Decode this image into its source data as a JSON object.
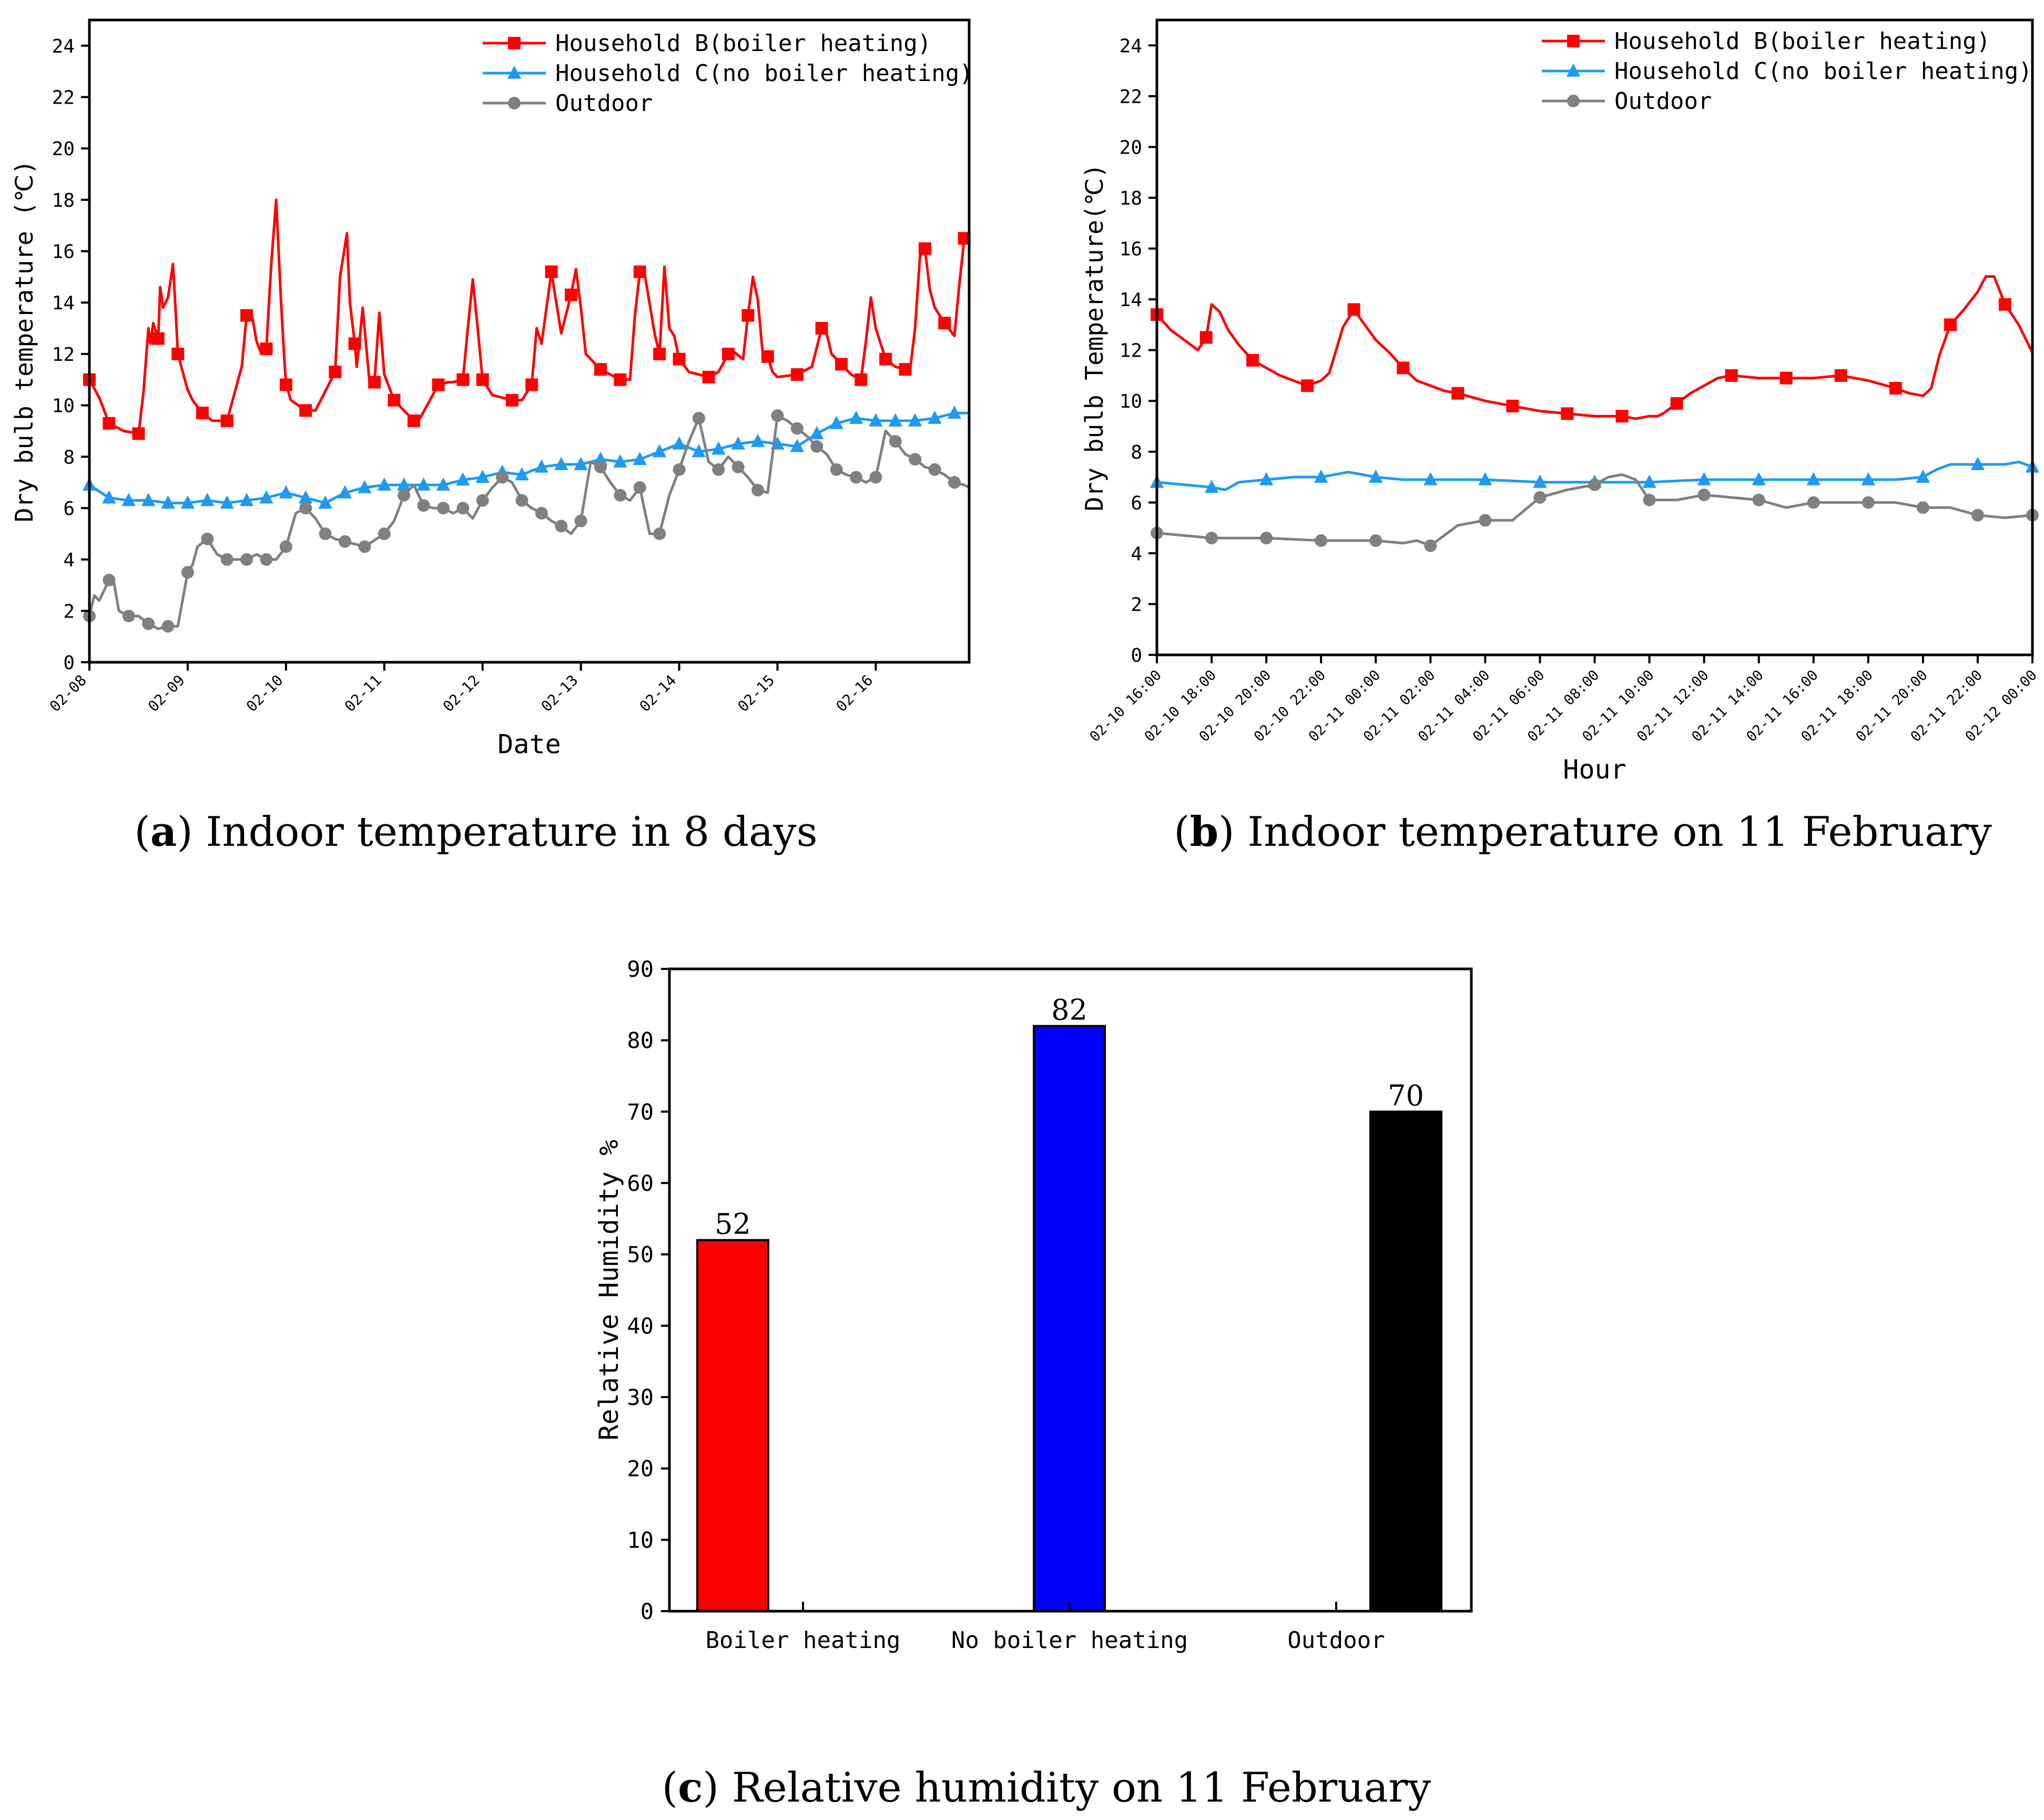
{
  "colors": {
    "household_b": "#ff0000",
    "household_c": "#1e9bf0",
    "outdoor": "#808080",
    "bar_boiler": "#ff0000",
    "bar_no_boiler": "#0000ff",
    "bar_outdoor": "#000000"
  },
  "chart_data": [
    {
      "id": "a",
      "type": "line",
      "caption_letter": "a",
      "caption_text": " Indoor temperature in 8 days",
      "xlabel": "Date",
      "ylabel": "Dry bulb temperature (℃)",
      "xlim": [
        0,
        8.95
      ],
      "ylim": [
        0,
        25
      ],
      "yticks": [
        0,
        2,
        4,
        6,
        8,
        10,
        12,
        14,
        16,
        18,
        20,
        22,
        24
      ],
      "xtick_positions": [
        0,
        1,
        2,
        3,
        4,
        5,
        6,
        7,
        8
      ],
      "xtick_labels": [
        "02-08",
        "02-09",
        "02-10",
        "02-11",
        "02-12",
        "02-13",
        "02-14",
        "02-15",
        "02-16"
      ],
      "legend": [
        "Household B(boiler heating)",
        "Household C(no boiler heating)",
        "Outdoor"
      ],
      "series": [
        {
          "name": "Household B(boiler heating)",
          "marker": "square",
          "x": [
            0.0,
            0.1,
            0.2,
            0.35,
            0.5,
            0.55,
            0.6,
            0.62,
            0.65,
            0.7,
            0.72,
            0.75,
            0.8,
            0.85,
            0.88,
            0.9,
            1.0,
            1.05,
            1.15,
            1.25,
            1.4,
            1.55,
            1.6,
            1.65,
            1.7,
            1.75,
            1.8,
            1.85,
            1.9,
            1.95,
            1.98,
            2.0,
            2.05,
            2.2,
            2.3,
            2.5,
            2.55,
            2.62,
            2.65,
            2.7,
            2.72,
            2.75,
            2.78,
            2.85,
            2.9,
            2.95,
            3.0,
            3.1,
            3.3,
            3.35,
            3.55,
            3.65,
            3.7,
            3.8,
            3.85,
            3.9,
            3.95,
            4.0,
            4.1,
            4.3,
            4.4,
            4.5,
            4.55,
            4.6,
            4.7,
            4.75,
            4.8,
            4.9,
            4.95,
            5.0,
            5.05,
            5.2,
            5.4,
            5.5,
            5.55,
            5.6,
            5.65,
            5.75,
            5.8,
            5.85,
            5.9,
            5.95,
            6.0,
            6.1,
            6.3,
            6.4,
            6.5,
            6.55,
            6.65,
            6.7,
            6.75,
            6.8,
            6.85,
            6.9,
            6.95,
            7.0,
            7.2,
            7.35,
            7.45,
            7.5,
            7.55,
            7.65,
            7.75,
            7.85,
            7.9,
            7.95,
            8.0,
            8.1,
            8.2,
            8.3,
            8.35,
            8.4,
            8.45,
            8.5,
            8.55,
            8.6,
            8.7,
            8.8,
            8.85,
            8.9,
            8.95
          ],
          "y": [
            11.0,
            10.3,
            9.3,
            9.0,
            8.9,
            10.5,
            13.0,
            12.4,
            13.2,
            12.6,
            14.6,
            13.8,
            14.2,
            15.5,
            13.5,
            12.0,
            10.6,
            10.2,
            9.7,
            9.4,
            9.4,
            11.5,
            13.5,
            13.6,
            12.5,
            12.0,
            12.2,
            15.5,
            18.0,
            14.0,
            12.0,
            10.8,
            10.2,
            9.8,
            9.8,
            11.3,
            15.0,
            16.7,
            14.0,
            12.4,
            11.5,
            12.6,
            13.8,
            10.9,
            10.9,
            13.6,
            11.2,
            10.2,
            9.4,
            9.4,
            10.8,
            10.9,
            10.9,
            11.0,
            13.0,
            14.9,
            13.0,
            11.0,
            10.4,
            10.2,
            10.2,
            10.8,
            13.0,
            12.4,
            15.2,
            14.0,
            12.8,
            14.3,
            15.3,
            13.8,
            12.0,
            11.4,
            11.0,
            11.0,
            13.5,
            15.2,
            15.1,
            12.8,
            12.0,
            15.4,
            13.0,
            12.7,
            11.8,
            11.3,
            11.1,
            11.3,
            12.0,
            12.1,
            11.8,
            13.5,
            15.0,
            14.1,
            12.0,
            11.9,
            11.3,
            11.1,
            11.2,
            11.5,
            13.0,
            12.8,
            12.0,
            11.6,
            11.2,
            11.0,
            12.5,
            14.2,
            13.0,
            11.8,
            11.5,
            11.4,
            11.4,
            13.0,
            15.8,
            16.1,
            14.5,
            13.8,
            13.2,
            12.7,
            14.7,
            16.5,
            16.4
          ]
        },
        {
          "name": "Household C(no boiler heating)",
          "marker": "triangle",
          "x": [
            0.0,
            0.2,
            0.4,
            0.6,
            0.8,
            1.0,
            1.2,
            1.4,
            1.6,
            1.8,
            2.0,
            2.2,
            2.4,
            2.6,
            2.8,
            3.0,
            3.2,
            3.4,
            3.6,
            3.8,
            4.0,
            4.2,
            4.4,
            4.6,
            4.8,
            5.0,
            5.2,
            5.4,
            5.6,
            5.8,
            6.0,
            6.2,
            6.4,
            6.6,
            6.8,
            7.0,
            7.2,
            7.4,
            7.6,
            7.8,
            8.0,
            8.2,
            8.4,
            8.6,
            8.8,
            8.95
          ],
          "y": [
            6.9,
            6.4,
            6.3,
            6.3,
            6.2,
            6.2,
            6.3,
            6.2,
            6.3,
            6.4,
            6.6,
            6.4,
            6.2,
            6.6,
            6.8,
            6.9,
            6.9,
            6.9,
            6.9,
            7.1,
            7.2,
            7.4,
            7.3,
            7.6,
            7.7,
            7.7,
            7.9,
            7.8,
            7.9,
            8.2,
            8.5,
            8.2,
            8.3,
            8.5,
            8.6,
            8.5,
            8.4,
            8.9,
            9.3,
            9.5,
            9.4,
            9.4,
            9.4,
            9.5,
            9.7,
            9.7
          ]
        },
        {
          "name": "Outdoor",
          "marker": "circle",
          "x": [
            0.0,
            0.05,
            0.1,
            0.2,
            0.25,
            0.3,
            0.4,
            0.5,
            0.6,
            0.7,
            0.8,
            0.9,
            1.0,
            1.05,
            1.1,
            1.2,
            1.3,
            1.4,
            1.5,
            1.6,
            1.7,
            1.8,
            1.9,
            2.0,
            2.1,
            2.2,
            2.3,
            2.4,
            2.5,
            2.6,
            2.8,
            3.0,
            3.1,
            3.2,
            3.3,
            3.4,
            3.5,
            3.6,
            3.7,
            3.8,
            3.9,
            4.0,
            4.1,
            4.2,
            4.3,
            4.4,
            4.5,
            4.6,
            4.7,
            4.8,
            4.9,
            5.0,
            5.1,
            5.2,
            5.3,
            5.4,
            5.5,
            5.6,
            5.7,
            5.8,
            5.9,
            6.0,
            6.1,
            6.2,
            6.3,
            6.4,
            6.5,
            6.6,
            6.7,
            6.8,
            6.9,
            7.0,
            7.1,
            7.2,
            7.3,
            7.4,
            7.5,
            7.6,
            7.7,
            7.8,
            7.9,
            8.0,
            8.1,
            8.2,
            8.3,
            8.4,
            8.5,
            8.6,
            8.7,
            8.8,
            8.9,
            8.95
          ],
          "y": [
            1.8,
            2.6,
            2.4,
            3.2,
            3.1,
            2.0,
            1.8,
            1.8,
            1.5,
            1.3,
            1.4,
            1.4,
            3.5,
            3.8,
            4.5,
            4.8,
            4.2,
            4.0,
            4.0,
            4.0,
            4.2,
            4.0,
            4.0,
            4.5,
            5.8,
            6.0,
            5.6,
            5.0,
            4.8,
            4.7,
            4.5,
            5.0,
            5.5,
            6.5,
            6.9,
            6.1,
            6.0,
            6.0,
            5.8,
            6.0,
            5.6,
            6.3,
            6.8,
            7.2,
            7.0,
            6.3,
            6.0,
            5.8,
            5.5,
            5.3,
            5.0,
            5.5,
            7.8,
            7.6,
            7.0,
            6.5,
            6.3,
            6.8,
            5.0,
            5.0,
            6.5,
            7.5,
            8.6,
            9.5,
            7.8,
            7.5,
            8.0,
            7.6,
            7.2,
            6.7,
            6.6,
            9.6,
            9.4,
            9.1,
            8.8,
            8.4,
            8.1,
            7.5,
            7.3,
            7.2,
            7.0,
            7.2,
            9.0,
            8.6,
            8.1,
            7.9,
            7.6,
            7.5,
            7.3,
            7.0,
            6.9,
            6.8
          ]
        }
      ]
    },
    {
      "id": "b",
      "type": "line",
      "caption_letter": "b",
      "caption_text": " Indoor temperature on 11 February",
      "xlabel": "Hour",
      "ylabel": "Dry bulb Temperature(℃)",
      "xlim": [
        0,
        32
      ],
      "ylim": [
        0,
        25
      ],
      "yticks": [
        0,
        2,
        4,
        6,
        8,
        10,
        12,
        14,
        16,
        18,
        20,
        22,
        24
      ],
      "xtick_positions": [
        0,
        2,
        4,
        6,
        8,
        10,
        12,
        14,
        16,
        18,
        20,
        22,
        24,
        26,
        28,
        30,
        32
      ],
      "xtick_labels": [
        "02-10 16:00",
        "02-10 18:00",
        "02-10 20:00",
        "02-10 22:00",
        "02-11 00:00",
        "02-11 02:00",
        "02-11 04:00",
        "02-11 06:00",
        "02-11 08:00",
        "02-11 10:00",
        "02-11 12:00",
        "02-11 14:00",
        "02-11 16:00",
        "02-11 18:00",
        "02-11 20:00",
        "02-11 22:00",
        "02-12 00:00"
      ],
      "legend": [
        "Household B(boiler heating)",
        "Household C(no boiler heating)",
        "Outdoor"
      ],
      "series": [
        {
          "name": "Household B(boiler heating)",
          "marker": "square",
          "x": [
            0,
            0.5,
            1,
            1.5,
            1.8,
            2.0,
            2.3,
            2.6,
            3.0,
            3.5,
            4.0,
            4.5,
            5.0,
            5.5,
            6.0,
            6.3,
            6.8,
            7.2,
            7.6,
            8.0,
            8.5,
            9.0,
            9.5,
            10.0,
            10.5,
            11.0,
            12.0,
            13.0,
            14.0,
            15.0,
            16.0,
            17.0,
            17.5,
            18.0,
            18.3,
            18.5,
            19.0,
            19.5,
            20.0,
            20.5,
            21.0,
            22.0,
            23.0,
            24.0,
            25.0,
            26.0,
            27.0,
            27.5,
            28.0,
            28.3,
            28.6,
            29.0,
            29.5,
            30.0,
            30.3,
            30.6,
            31.0,
            31.5,
            32.0
          ],
          "y": [
            13.4,
            12.8,
            12.4,
            12.0,
            12.5,
            13.8,
            13.5,
            12.8,
            12.2,
            11.6,
            11.3,
            11.0,
            10.8,
            10.6,
            10.8,
            11.1,
            12.9,
            13.6,
            13.0,
            12.4,
            11.9,
            11.3,
            10.8,
            10.6,
            10.4,
            10.3,
            10.0,
            9.8,
            9.6,
            9.5,
            9.4,
            9.4,
            9.3,
            9.4,
            9.4,
            9.5,
            9.9,
            10.3,
            10.6,
            10.9,
            11.0,
            10.9,
            10.9,
            10.9,
            11.0,
            10.8,
            10.5,
            10.3,
            10.2,
            10.5,
            11.8,
            13.0,
            13.6,
            14.3,
            14.9,
            14.9,
            13.8,
            13.0,
            11.9
          ]
        },
        {
          "name": "Household C(no boiler heating)",
          "marker": "triangle",
          "x": [
            0,
            1,
            2,
            2.5,
            3,
            4,
            5,
            6,
            7,
            8,
            9,
            10,
            12,
            14,
            16,
            18,
            20,
            22,
            24,
            26,
            27,
            28,
            28.5,
            29,
            30,
            31,
            31.5,
            32
          ],
          "y": [
            6.8,
            6.7,
            6.6,
            6.5,
            6.8,
            6.9,
            7.0,
            7.0,
            7.2,
            7.0,
            6.9,
            6.9,
            6.9,
            6.8,
            6.8,
            6.8,
            6.9,
            6.9,
            6.9,
            6.9,
            6.9,
            7.0,
            7.3,
            7.5,
            7.5,
            7.5,
            7.6,
            7.4
          ]
        },
        {
          "name": "Outdoor",
          "marker": "circle",
          "x": [
            0,
            2,
            4,
            6,
            8,
            9,
            9.5,
            10,
            11,
            12,
            13,
            14,
            15,
            16,
            16.5,
            17,
            17.5,
            18,
            19,
            20,
            21,
            22,
            23,
            24,
            25,
            26,
            27,
            28,
            29,
            30,
            31,
            32
          ],
          "y": [
            4.8,
            4.6,
            4.6,
            4.5,
            4.5,
            4.4,
            4.5,
            4.3,
            5.1,
            5.3,
            5.3,
            6.2,
            6.5,
            6.7,
            7.0,
            7.1,
            6.9,
            6.1,
            6.1,
            6.3,
            6.2,
            6.1,
            5.8,
            6.0,
            6.0,
            6.0,
            6.0,
            5.8,
            5.8,
            5.5,
            5.4,
            5.5
          ]
        }
      ]
    },
    {
      "id": "c",
      "type": "bar",
      "caption_letter": "c",
      "caption_text": " Relative humidity on 11 February",
      "xlabel": "",
      "ylabel": "Relative Humidity %",
      "categories": [
        "Boiler heating",
        "No boiler heating",
        "Outdoor"
      ],
      "values": [
        52,
        82,
        70
      ],
      "data_labels": [
        "52",
        "82",
        "70"
      ],
      "ylim": [
        0,
        90
      ],
      "yticks": [
        0,
        10,
        20,
        30,
        40,
        50,
        60,
        70,
        80,
        90
      ]
    }
  ]
}
